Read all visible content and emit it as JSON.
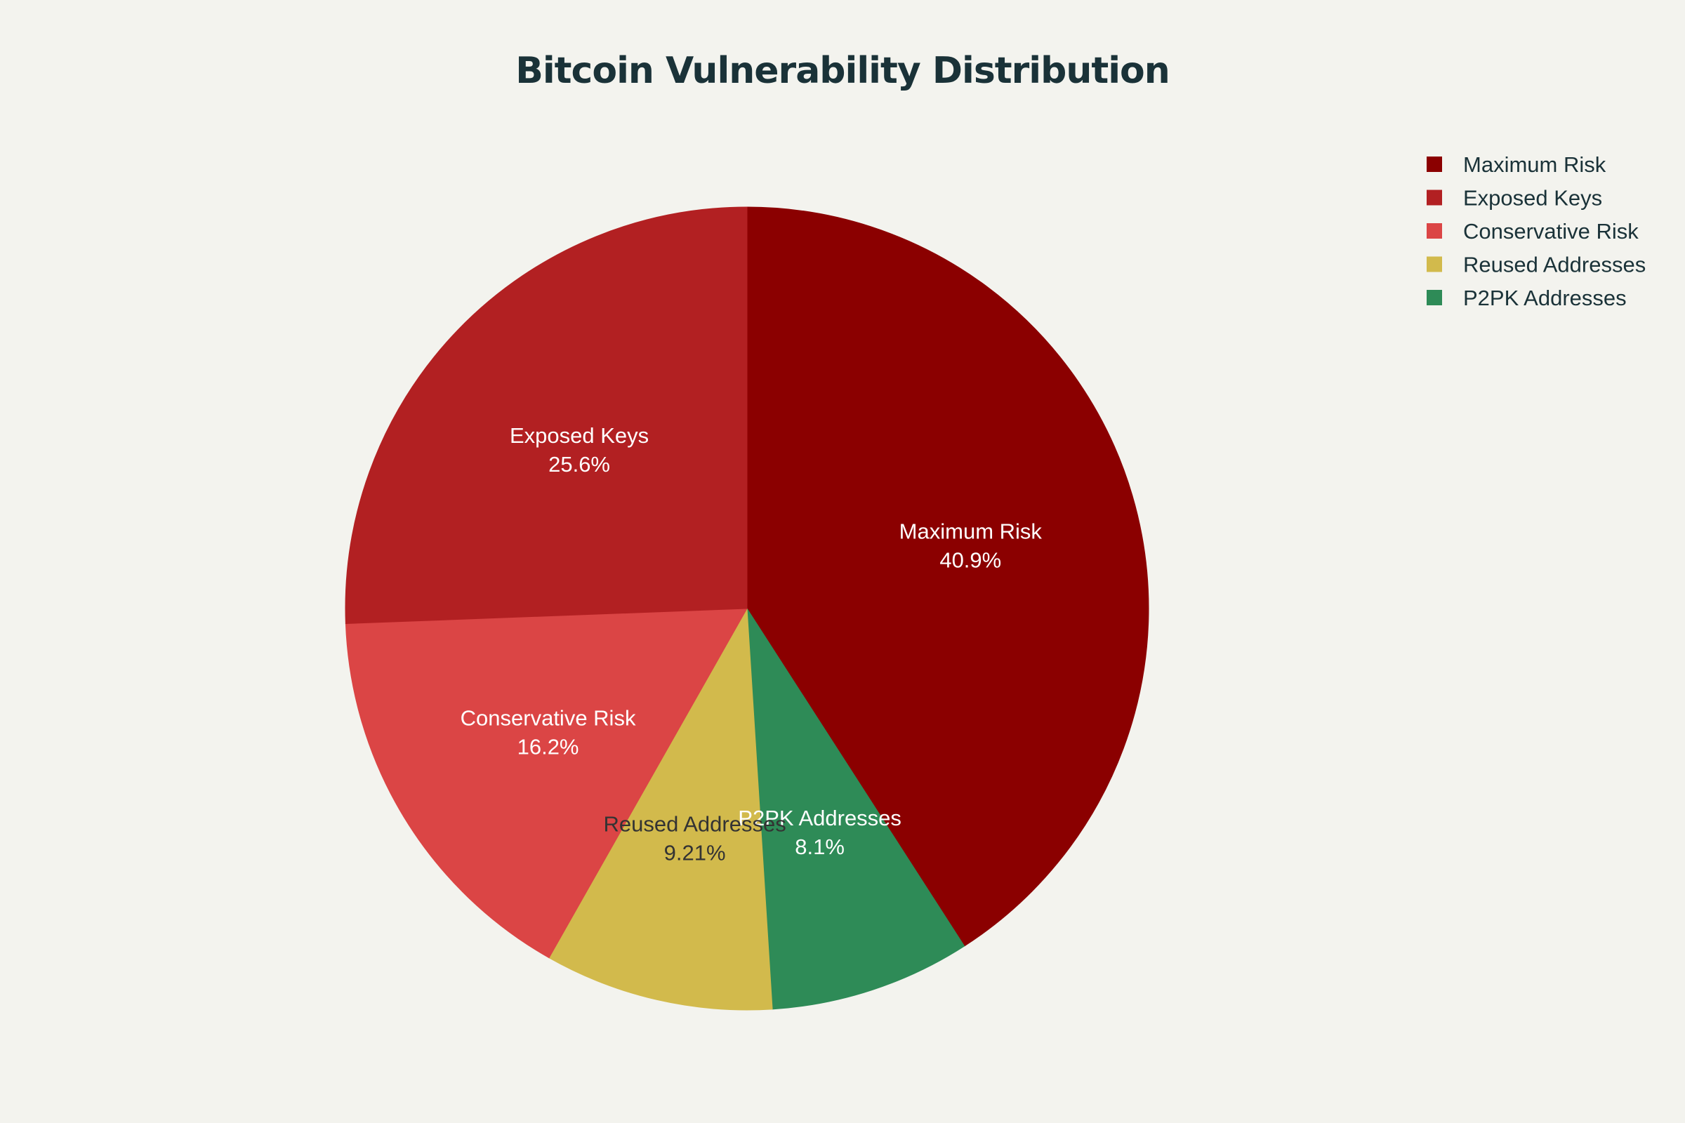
{
  "chart_data": {
    "type": "pie",
    "title": "Bitcoin Vulnerability Distribution",
    "direction": "clockwise",
    "start_angle_deg": 90,
    "slices": [
      {
        "label": "Maximum Risk",
        "value": 40.9,
        "display": "40.9%",
        "color": "#8b0000",
        "text_color": "#ffffff"
      },
      {
        "label": "P2PK Addresses",
        "value": 8.1,
        "display": "8.1%",
        "color": "#2e8b57",
        "text_color": "#ffffff"
      },
      {
        "label": "Reused Addresses",
        "value": 9.21,
        "display": "9.21%",
        "color": "#d2ba4c",
        "text_color": "#333333"
      },
      {
        "label": "Conservative Risk",
        "value": 16.2,
        "display": "16.2%",
        "color": "#db4545",
        "text_color": "#ffffff"
      },
      {
        "label": "Exposed Keys",
        "value": 25.6,
        "display": "25.6%",
        "color": "#b22022",
        "text_color": "#ffffff"
      }
    ],
    "legend": {
      "placement": "top-right",
      "items": [
        "Maximum Risk",
        "Exposed Keys",
        "Conservative Risk",
        "Reused Addresses",
        "P2PK Addresses"
      ]
    }
  }
}
